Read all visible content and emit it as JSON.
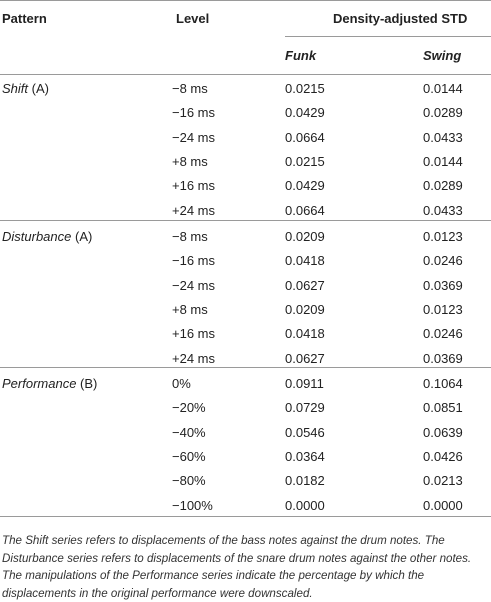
{
  "header": {
    "pattern": "Pattern",
    "level": "Level",
    "density": "Density-adjusted STD",
    "funk": "Funk",
    "swing": "Swing"
  },
  "groups": [
    {
      "name": "Shift",
      "suffix": " (A)",
      "rows": [
        {
          "level": "−8 ms",
          "funk": "0.0215",
          "swing": "0.0144"
        },
        {
          "level": "−16 ms",
          "funk": "0.0429",
          "swing": "0.0289"
        },
        {
          "level": "−24 ms",
          "funk": "0.0664",
          "swing": "0.0433"
        },
        {
          "level": "+8 ms",
          "funk": "0.0215",
          "swing": "0.0144"
        },
        {
          "level": "+16 ms",
          "funk": "0.0429",
          "swing": "0.0289"
        },
        {
          "level": "+24 ms",
          "funk": "0.0664",
          "swing": "0.0433"
        }
      ]
    },
    {
      "name": "Disturbance",
      "suffix": " (A)",
      "rows": [
        {
          "level": "−8 ms",
          "funk": "0.0209",
          "swing": "0.0123"
        },
        {
          "level": "−16 ms",
          "funk": "0.0418",
          "swing": "0.0246"
        },
        {
          "level": "−24 ms",
          "funk": "0.0627",
          "swing": "0.0369"
        },
        {
          "level": "+8 ms",
          "funk": "0.0209",
          "swing": "0.0123"
        },
        {
          "level": "+16 ms",
          "funk": "0.0418",
          "swing": "0.0246"
        },
        {
          "level": "+24 ms",
          "funk": "0.0627",
          "swing": "0.0369"
        }
      ]
    },
    {
      "name": "Performance",
      "suffix": " (B)",
      "rows": [
        {
          "level": "0%",
          "funk": "0.0911",
          "swing": "0.1064"
        },
        {
          "level": "−20%",
          "funk": "0.0729",
          "swing": "0.0851"
        },
        {
          "level": "−40%",
          "funk": "0.0546",
          "swing": "0.0639"
        },
        {
          "level": "−60%",
          "funk": "0.0364",
          "swing": "0.0426"
        },
        {
          "level": "−80%",
          "funk": "0.0182",
          "swing": "0.0213"
        },
        {
          "level": "−100%",
          "funk": "0.0000",
          "swing": "0.0000"
        }
      ]
    }
  ],
  "footnote": "The Shift series refers to displacements of the bass notes against the drum notes. The Disturbance series refers to displacements of the snare drum notes against the other notes. The manipulations of the Performance series indicate the percentage by which the displacements in the original performance were downscaled."
}
